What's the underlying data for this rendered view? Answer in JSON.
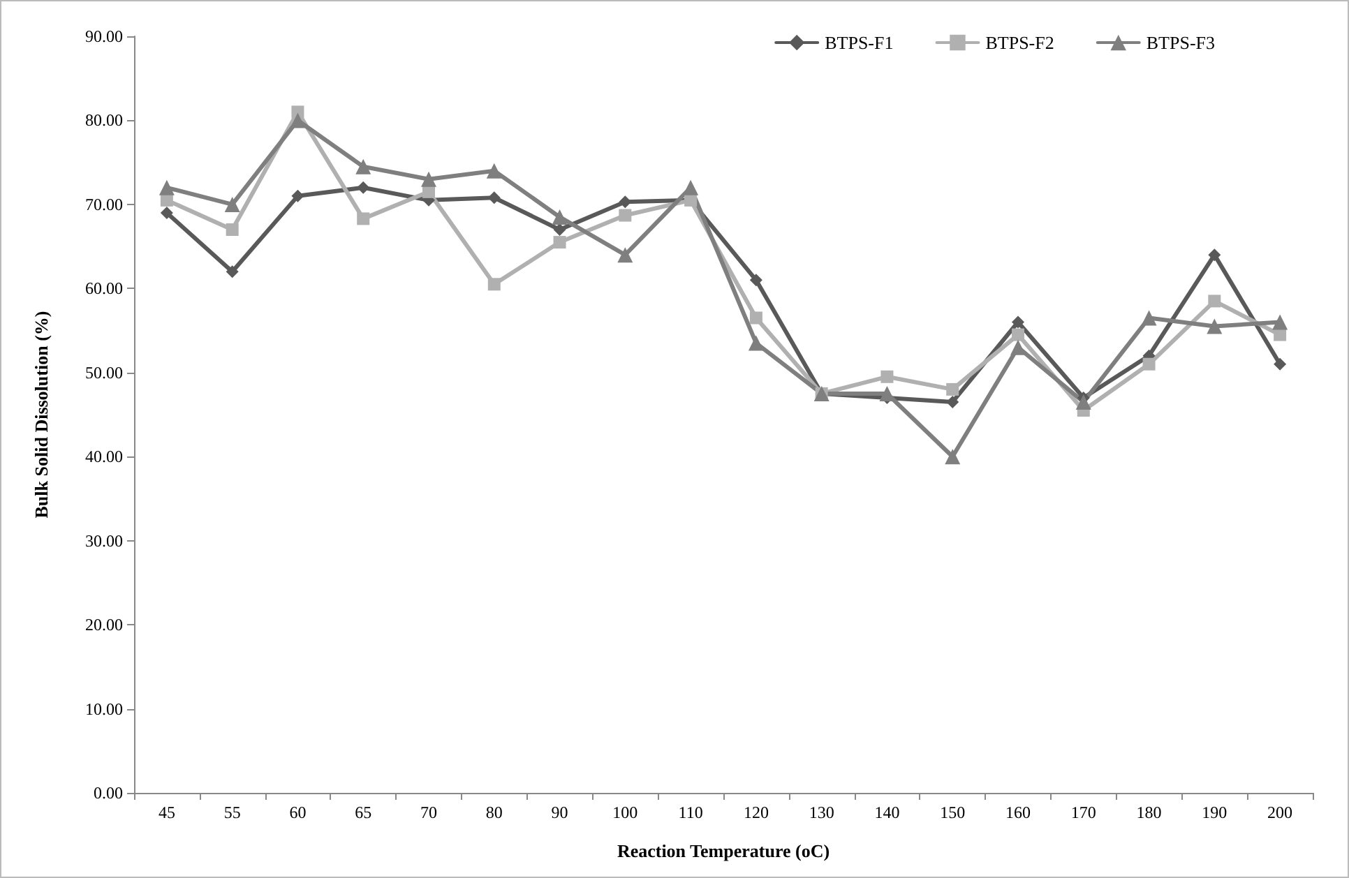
{
  "chart_data": {
    "type": "line",
    "xlabel": "Reaction Temperature (oC)",
    "ylabel": "Bulk Solid Dissolution (%)",
    "categories": [
      "45",
      "55",
      "60",
      "65",
      "70",
      "80",
      "90",
      "100",
      "110",
      "120",
      "130",
      "140",
      "150",
      "160",
      "170",
      "180",
      "190",
      "200"
    ],
    "series": [
      {
        "name": "BTPS-F1",
        "color": "#595959",
        "marker": "diamond",
        "values": [
          69,
          62,
          71,
          72,
          70.5,
          70.8,
          67,
          70.3,
          70.5,
          61,
          47.5,
          47,
          46.5,
          56,
          47,
          52,
          64,
          51
        ]
      },
      {
        "name": "BTPS-F2",
        "color": "#b0b0b0",
        "marker": "square",
        "values": [
          70.5,
          67,
          81,
          68.3,
          71.5,
          60.5,
          65.5,
          68.7,
          70.5,
          56.5,
          47.5,
          49.5,
          48,
          54.5,
          45.5,
          51,
          58.5,
          54.5
        ]
      },
      {
        "name": "BTPS-F3",
        "color": "#7f7f7f",
        "marker": "triangle",
        "values": [
          72,
          70,
          80,
          74.5,
          73,
          74,
          68.5,
          64,
          72,
          53.5,
          47.5,
          47.5,
          40,
          53,
          46.5,
          56.5,
          55.5,
          56
        ]
      }
    ],
    "ylim": [
      0,
      90
    ],
    "yticks": [
      {
        "value": 0,
        "label": "0.00"
      },
      {
        "value": 10,
        "label": "10.00"
      },
      {
        "value": 20,
        "label": "20.00"
      },
      {
        "value": 30,
        "label": "30.00"
      },
      {
        "value": 40,
        "label": "40.00"
      },
      {
        "value": 50,
        "label": "50.00"
      },
      {
        "value": 60,
        "label": "60.00"
      },
      {
        "value": 70,
        "label": "70.00"
      },
      {
        "value": 80,
        "label": "80.00"
      },
      {
        "value": 90,
        "label": "90.00"
      }
    ],
    "grid": false,
    "legend": "top right",
    "line_style": "solid"
  }
}
